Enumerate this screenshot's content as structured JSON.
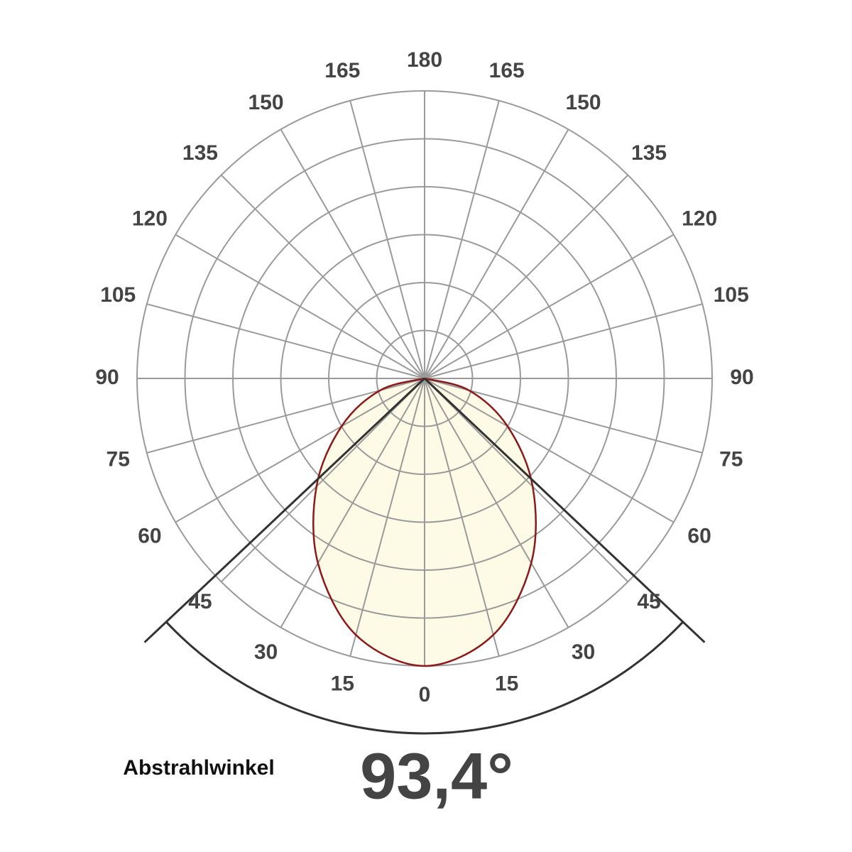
{
  "chart_data": {
    "type": "polar",
    "angles": [
      0,
      15,
      30,
      45,
      60,
      75,
      90
    ],
    "values": [
      6.0,
      5.54,
      4.45,
      3.19,
      2.0,
      0.96,
      0
    ],
    "color": "#8b1a1a",
    "fill": "#fdfae6",
    "rlim": [
      0,
      6
    ],
    "rticks": [
      1,
      2,
      3,
      4,
      5,
      6
    ],
    "angle_ticks": [
      0,
      15,
      30,
      45,
      60,
      75,
      90,
      105,
      120,
      135,
      150,
      165,
      180
    ],
    "beam_angle": {
      "value": 93.4,
      "label": "93,4°"
    },
    "beam_label": "Abstrahlwinkel"
  }
}
